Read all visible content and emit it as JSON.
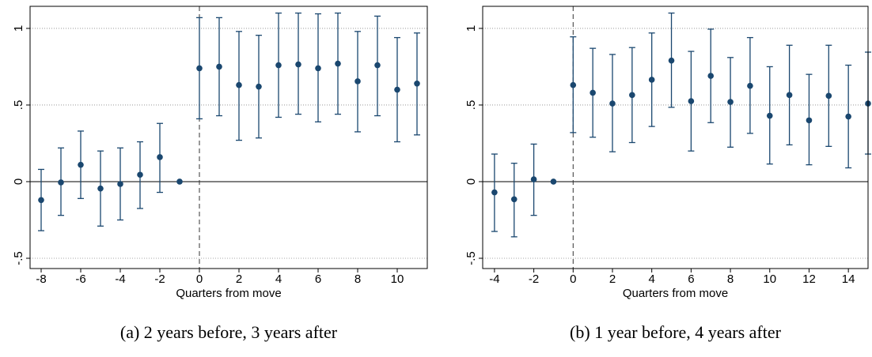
{
  "chart_data": [
    {
      "type": "errorbar",
      "caption": "(a) 2 years before, 3 years after",
      "xlabel": "Quarters from move",
      "x": [
        -8,
        -7,
        -6,
        -5,
        -4,
        -3,
        -2,
        -1,
        0,
        1,
        2,
        3,
        4,
        5,
        6,
        7,
        8,
        9,
        10,
        11
      ],
      "values": [
        -0.12,
        -0.005,
        0.11,
        -0.045,
        -0.015,
        0.045,
        0.16,
        0,
        0.74,
        0.75,
        0.63,
        0.62,
        0.76,
        0.765,
        0.74,
        0.77,
        0.655,
        0.76,
        0.6,
        0.64
      ],
      "lower": [
        -0.32,
        -0.22,
        -0.11,
        -0.29,
        -0.25,
        -0.175,
        -0.07,
        null,
        0.41,
        0.43,
        0.27,
        0.285,
        0.42,
        0.44,
        0.39,
        0.44,
        0.325,
        0.43,
        0.26,
        0.305
      ],
      "upper": [
        0.08,
        0.22,
        0.33,
        0.2,
        0.22,
        0.26,
        0.38,
        null,
        1.07,
        1.07,
        0.98,
        0.955,
        1.1,
        1.1,
        1.095,
        1.1,
        0.98,
        1.08,
        0.94,
        0.97
      ],
      "color": "#1a476f",
      "xlim": [
        -8.56,
        11.52
      ],
      "ylim": [
        -0.567,
        1.144
      ],
      "xticks": [
        -8,
        -6,
        -4,
        -2,
        0,
        2,
        4,
        6,
        8,
        10
      ],
      "yticks": [
        {
          "value": -0.5,
          "label": "-.5"
        },
        0,
        {
          "value": 0.5,
          "label": ".5"
        },
        1
      ],
      "grid": true,
      "xline": 0,
      "yline": 0
    },
    {
      "type": "errorbar",
      "caption": "(b) 1 year before, 4 years after",
      "xlabel": "Quarters from move",
      "x": [
        -4,
        -3,
        -2,
        -1,
        0,
        1,
        2,
        3,
        4,
        5,
        6,
        7,
        8,
        9,
        10,
        11,
        12,
        13,
        14,
        15
      ],
      "values": [
        -0.07,
        -0.115,
        0.015,
        0,
        0.63,
        0.58,
        0.51,
        0.565,
        0.665,
        0.79,
        0.525,
        0.69,
        0.52,
        0.625,
        0.43,
        0.565,
        0.4,
        0.56,
        0.425,
        0.51
      ],
      "lower": [
        -0.325,
        -0.36,
        -0.22,
        null,
        0.32,
        0.29,
        0.195,
        0.255,
        0.36,
        0.485,
        0.2,
        0.385,
        0.225,
        0.315,
        0.115,
        0.24,
        0.11,
        0.23,
        0.09,
        0.18
      ],
      "upper": [
        0.18,
        0.12,
        0.245,
        null,
        0.945,
        0.87,
        0.83,
        0.875,
        0.97,
        1.1,
        0.85,
        0.995,
        0.81,
        0.94,
        0.75,
        0.89,
        0.7,
        0.89,
        0.76,
        0.845
      ],
      "color": "#1a476f",
      "xlim": [
        -4.6,
        15.0
      ],
      "ylim": [
        -0.567,
        1.144
      ],
      "xticks": [
        -4,
        -2,
        0,
        2,
        4,
        6,
        8,
        10,
        12,
        14
      ],
      "yticks": [
        {
          "value": -0.5,
          "label": "-.5"
        },
        0,
        {
          "value": 0.5,
          "label": ".5"
        },
        1
      ],
      "grid": true,
      "xline": 0,
      "yline": 0
    }
  ]
}
